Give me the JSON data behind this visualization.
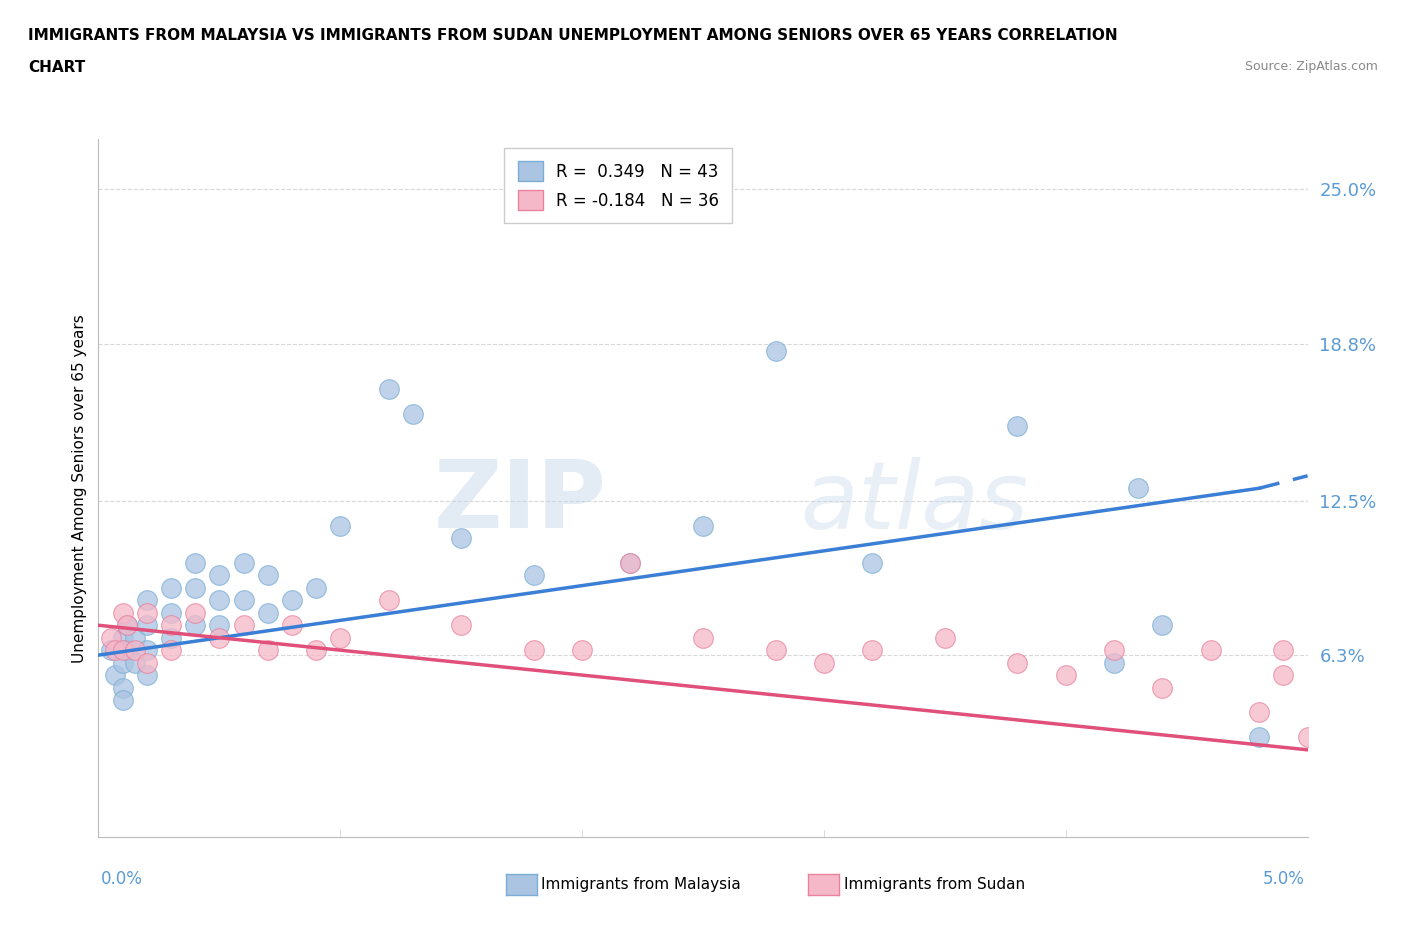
{
  "title_line1": "IMMIGRANTS FROM MALAYSIA VS IMMIGRANTS FROM SUDAN UNEMPLOYMENT AMONG SENIORS OVER 65 YEARS CORRELATION",
  "title_line2": "CHART",
  "source": "Source: ZipAtlas.com",
  "ylabel": "Unemployment Among Seniors over 65 years",
  "xmin": 0.0,
  "xmax": 0.05,
  "ymin": -0.01,
  "ymax": 0.27,
  "malaysia_color": "#aac4e2",
  "malaysia_color_edge": "#7aaed6",
  "sudan_color": "#f5b8c8",
  "sudan_color_edge": "#e8829e",
  "trendline_malaysia_color": "#3a7fd5",
  "trendline_sudan_color": "#e0507a",
  "R_malaysia": 0.349,
  "N_malaysia": 43,
  "R_sudan": -0.184,
  "N_sudan": 36,
  "malaysia_x": [
    0.0005,
    0.0007,
    0.001,
    0.001,
    0.001,
    0.001,
    0.0012,
    0.0012,
    0.0015,
    0.0015,
    0.002,
    0.002,
    0.002,
    0.002,
    0.003,
    0.003,
    0.003,
    0.004,
    0.004,
    0.004,
    0.005,
    0.005,
    0.005,
    0.006,
    0.006,
    0.007,
    0.007,
    0.008,
    0.009,
    0.01,
    0.012,
    0.013,
    0.015,
    0.018,
    0.022,
    0.025,
    0.028,
    0.032,
    0.038,
    0.042,
    0.043,
    0.044,
    0.048
  ],
  "malaysia_y": [
    0.065,
    0.055,
    0.07,
    0.06,
    0.05,
    0.045,
    0.075,
    0.065,
    0.07,
    0.06,
    0.085,
    0.075,
    0.065,
    0.055,
    0.09,
    0.08,
    0.07,
    0.1,
    0.09,
    0.075,
    0.095,
    0.085,
    0.075,
    0.1,
    0.085,
    0.095,
    0.08,
    0.085,
    0.09,
    0.115,
    0.17,
    0.16,
    0.11,
    0.095,
    0.1,
    0.115,
    0.185,
    0.1,
    0.155,
    0.06,
    0.13,
    0.075,
    0.03
  ],
  "sudan_x": [
    0.0005,
    0.0007,
    0.001,
    0.001,
    0.0012,
    0.0015,
    0.002,
    0.002,
    0.003,
    0.003,
    0.004,
    0.005,
    0.006,
    0.007,
    0.008,
    0.009,
    0.01,
    0.012,
    0.015,
    0.018,
    0.02,
    0.022,
    0.025,
    0.028,
    0.03,
    0.032,
    0.035,
    0.038,
    0.04,
    0.042,
    0.044,
    0.046,
    0.048,
    0.049,
    0.049,
    0.05
  ],
  "sudan_y": [
    0.07,
    0.065,
    0.08,
    0.065,
    0.075,
    0.065,
    0.08,
    0.06,
    0.075,
    0.065,
    0.08,
    0.07,
    0.075,
    0.065,
    0.075,
    0.065,
    0.07,
    0.085,
    0.075,
    0.065,
    0.065,
    0.1,
    0.07,
    0.065,
    0.06,
    0.065,
    0.07,
    0.06,
    0.055,
    0.065,
    0.05,
    0.065,
    0.04,
    0.065,
    0.055,
    0.03
  ],
  "trendline_malaysia_x0": 0.0,
  "trendline_malaysia_y0": 0.063,
  "trendline_malaysia_x1": 0.048,
  "trendline_malaysia_y1": 0.13,
  "trendline_malaysia_dash_x1": 0.05,
  "trendline_malaysia_dash_y1": 0.135,
  "trendline_sudan_x0": 0.0,
  "trendline_sudan_y0": 0.075,
  "trendline_sudan_x1": 0.05,
  "trendline_sudan_y1": 0.025,
  "watermark_zip": "ZIP",
  "watermark_atlas": "atlas",
  "background_color": "#ffffff",
  "grid_color": "#d8d8d8",
  "ytick_vals": [
    0.063,
    0.125,
    0.188,
    0.25
  ],
  "ytick_labels": [
    "6.3%",
    "12.5%",
    "18.8%",
    "25.0%"
  ],
  "ytick_color": "#5b9bd5"
}
